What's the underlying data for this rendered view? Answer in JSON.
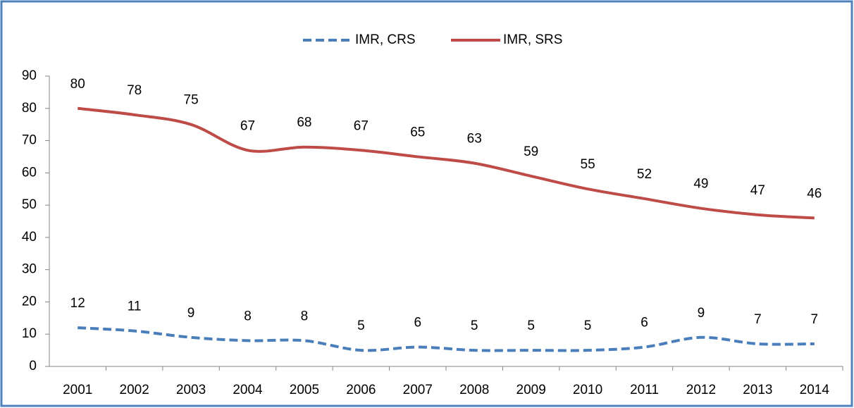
{
  "chart_data": {
    "type": "line",
    "categories": [
      "2001",
      "2002",
      "2003",
      "2004",
      "2005",
      "2006",
      "2007",
      "2008",
      "2009",
      "2010",
      "2011",
      "2012",
      "2013",
      "2014"
    ],
    "series": [
      {
        "name": "IMR, CRS",
        "color": "#4a7ebb",
        "dashed": true,
        "values": [
          12,
          11,
          9,
          8,
          8,
          5,
          6,
          5,
          5,
          5,
          6,
          9,
          7,
          7
        ]
      },
      {
        "name": "IMR, SRS",
        "color": "#be4b48",
        "dashed": false,
        "values": [
          80,
          78,
          75,
          67,
          68,
          67,
          65,
          63,
          59,
          55,
          52,
          49,
          47,
          46
        ]
      }
    ],
    "ylim": [
      0,
      90
    ],
    "yticks": [
      0,
      10,
      20,
      30,
      40,
      50,
      60,
      70,
      80,
      90
    ],
    "legend": "top",
    "grid": false,
    "data_labels": true
  }
}
